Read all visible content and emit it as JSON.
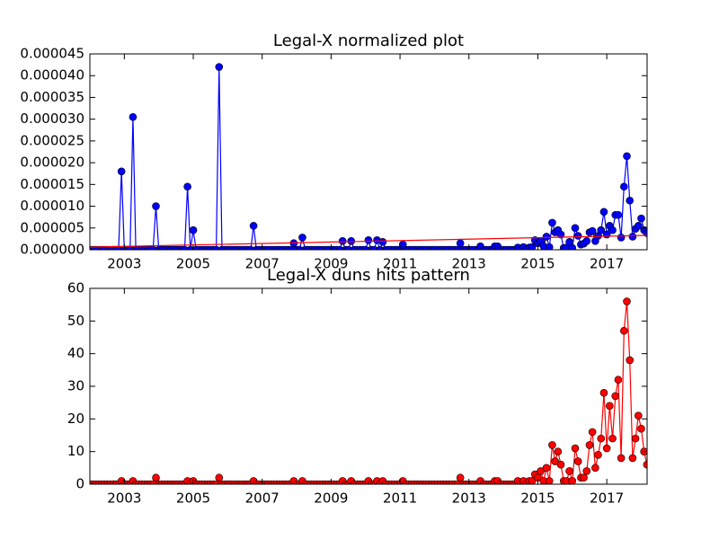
{
  "chart_data": [
    {
      "type": "line",
      "title": "Legal-X normalized plot",
      "x": [
        2002,
        2002.083,
        2002.167,
        2002.25,
        2002.333,
        2002.417,
        2002.5,
        2002.583,
        2002.667,
        2002.75,
        2002.833,
        2002.917,
        2003,
        2003.083,
        2003.167,
        2003.25,
        2003.333,
        2003.417,
        2003.5,
        2003.583,
        2003.667,
        2003.75,
        2003.833,
        2003.917,
        2004,
        2004.083,
        2004.167,
        2004.25,
        2004.333,
        2004.417,
        2004.5,
        2004.583,
        2004.667,
        2004.75,
        2004.833,
        2004.917,
        2005,
        2005.083,
        2005.167,
        2005.25,
        2005.333,
        2005.417,
        2005.5,
        2005.583,
        2005.667,
        2005.75,
        2005.833,
        2005.917,
        2006,
        2006.083,
        2006.167,
        2006.25,
        2006.333,
        2006.417,
        2006.5,
        2006.583,
        2006.667,
        2006.75,
        2006.833,
        2006.917,
        2007,
        2007.083,
        2007.167,
        2007.25,
        2007.333,
        2007.417,
        2007.5,
        2007.583,
        2007.667,
        2007.75,
        2007.833,
        2007.917,
        2008,
        2008.083,
        2008.167,
        2008.25,
        2008.333,
        2008.417,
        2008.5,
        2008.583,
        2008.667,
        2008.75,
        2008.833,
        2008.917,
        2009,
        2009.083,
        2009.167,
        2009.25,
        2009.333,
        2009.417,
        2009.5,
        2009.583,
        2009.667,
        2009.75,
        2009.833,
        2009.917,
        2010,
        2010.083,
        2010.167,
        2010.25,
        2010.333,
        2010.417,
        2010.5,
        2010.583,
        2010.667,
        2010.75,
        2010.833,
        2010.917,
        2011,
        2011.083,
        2011.167,
        2011.25,
        2011.333,
        2011.417,
        2011.5,
        2011.583,
        2011.667,
        2011.75,
        2011.833,
        2011.917,
        2012,
        2012.083,
        2012.167,
        2012.25,
        2012.333,
        2012.417,
        2012.5,
        2012.583,
        2012.667,
        2012.75,
        2012.833,
        2012.917,
        2013,
        2013.083,
        2013.167,
        2013.25,
        2013.333,
        2013.417,
        2013.5,
        2013.583,
        2013.667,
        2013.75,
        2013.833,
        2013.917,
        2014,
        2014.083,
        2014.167,
        2014.25,
        2014.333,
        2014.417,
        2014.5,
        2014.583,
        2014.667,
        2014.75,
        2014.833,
        2014.917,
        2015,
        2015.083,
        2015.167,
        2015.25,
        2015.333,
        2015.417,
        2015.5,
        2015.583,
        2015.667,
        2015.75,
        2015.833,
        2015.917,
        2016,
        2016.083,
        2016.167,
        2016.25,
        2016.333,
        2016.417,
        2016.5,
        2016.583,
        2016.667,
        2016.75,
        2016.833,
        2016.917,
        2017,
        2017.083,
        2017.167,
        2017.25,
        2017.333,
        2017.417,
        2017.5,
        2017.583,
        2017.667,
        2017.75,
        2017.833,
        2017.917,
        2018,
        2018.083,
        2018.167
      ],
      "series": [
        {
          "color": "#0000ff",
          "markers": true,
          "values": [
            0,
            0,
            0,
            0,
            0,
            0,
            0,
            0,
            0,
            0,
            0,
            1.8e-05,
            0,
            0,
            0,
            3.05e-05,
            0,
            0,
            0,
            0,
            0,
            0,
            0,
            1e-05,
            0,
            0,
            0,
            0,
            0,
            0,
            0,
            0,
            0,
            0,
            1.45e-05,
            0,
            4.5e-06,
            0,
            0,
            0,
            0,
            0,
            0,
            0,
            0,
            4.2e-05,
            0,
            0,
            0,
            0,
            0,
            0,
            0,
            0,
            0,
            0,
            0,
            5.5e-06,
            0,
            0,
            0,
            0,
            0,
            0,
            0,
            0,
            0,
            0,
            0,
            0,
            0,
            1.5e-06,
            0,
            0,
            2.8e-06,
            0,
            0,
            0,
            0,
            0,
            0,
            0,
            0,
            0,
            0,
            0,
            0,
            0,
            2e-06,
            0,
            0,
            2e-06,
            0,
            0,
            0,
            0,
            0,
            2.2e-06,
            0,
            0,
            2.2e-06,
            0,
            1.8e-06,
            0,
            0,
            0,
            0,
            0,
            0,
            1.2e-06,
            0,
            0,
            0,
            0,
            0,
            0,
            0,
            0,
            0,
            0,
            0,
            0,
            0,
            0,
            0,
            0,
            0,
            0,
            0,
            1.5e-06,
            0,
            0,
            0,
            0,
            0,
            0,
            8e-07,
            0,
            0,
            0,
            0,
            8e-07,
            8e-07,
            0,
            0,
            0,
            0,
            0,
            0,
            5e-07,
            0,
            6e-07,
            0,
            5e-07,
            6e-07,
            2.2e-06,
            1.5e-06,
            2e-06,
            8e-07,
            3e-06,
            6e-07,
            6.2e-06,
            4e-06,
            4.5e-06,
            3.5e-06,
            4e-07,
            5e-07,
            1.8e-06,
            4e-07,
            5e-06,
            3.2e-06,
            1.2e-06,
            1.4e-06,
            2e-06,
            4e-06,
            4.3e-06,
            2e-06,
            3.2e-06,
            4.5e-06,
            8.7e-06,
            3.5e-06,
            5.5e-06,
            4.5e-06,
            8e-06,
            8e-06,
            2.8e-06,
            1.45e-05,
            2.15e-05,
            1.13e-05,
            3e-06,
            4.8e-06,
            5.5e-06,
            7.2e-06,
            4.5e-06,
            3.8e-06
          ]
        },
        {
          "color": "#ff0000",
          "markers": false,
          "x": [
            2002,
            2018.17
          ],
          "values": [
            6e-07,
            3.3e-06
          ]
        }
      ],
      "xlim": [
        2002,
        2018.17
      ],
      "xticks": [
        2003,
        2005,
        2007,
        2009,
        2011,
        2013,
        2015,
        2017
      ],
      "ylim": [
        0,
        4.5e-05
      ],
      "yticks": [
        {
          "value": 0,
          "label": "0.000000"
        },
        {
          "value": 5e-06,
          "label": "0.000005"
        },
        {
          "value": 1e-05,
          "label": "0.000010"
        },
        {
          "value": 1.5e-05,
          "label": "0.000015"
        },
        {
          "value": 2e-05,
          "label": "0.000020"
        },
        {
          "value": 2.5e-05,
          "label": "0.000025"
        },
        {
          "value": 3e-05,
          "label": "0.000030"
        },
        {
          "value": 3.5e-05,
          "label": "0.000035"
        },
        {
          "value": 4e-05,
          "label": "0.000040"
        },
        {
          "value": 4.5e-05,
          "label": "0.000045"
        }
      ]
    },
    {
      "type": "line",
      "title": "Legal-X duns hits pattern",
      "x": [
        2002,
        2002.083,
        2002.167,
        2002.25,
        2002.333,
        2002.417,
        2002.5,
        2002.583,
        2002.667,
        2002.75,
        2002.833,
        2002.917,
        2003,
        2003.083,
        2003.167,
        2003.25,
        2003.333,
        2003.417,
        2003.5,
        2003.583,
        2003.667,
        2003.75,
        2003.833,
        2003.917,
        2004,
        2004.083,
        2004.167,
        2004.25,
        2004.333,
        2004.417,
        2004.5,
        2004.583,
        2004.667,
        2004.75,
        2004.833,
        2004.917,
        2005,
        2005.083,
        2005.167,
        2005.25,
        2005.333,
        2005.417,
        2005.5,
        2005.583,
        2005.667,
        2005.75,
        2005.833,
        2005.917,
        2006,
        2006.083,
        2006.167,
        2006.25,
        2006.333,
        2006.417,
        2006.5,
        2006.583,
        2006.667,
        2006.75,
        2006.833,
        2006.917,
        2007,
        2007.083,
        2007.167,
        2007.25,
        2007.333,
        2007.417,
        2007.5,
        2007.583,
        2007.667,
        2007.75,
        2007.833,
        2007.917,
        2008,
        2008.083,
        2008.167,
        2008.25,
        2008.333,
        2008.417,
        2008.5,
        2008.583,
        2008.667,
        2008.75,
        2008.833,
        2008.917,
        2009,
        2009.083,
        2009.167,
        2009.25,
        2009.333,
        2009.417,
        2009.5,
        2009.583,
        2009.667,
        2009.75,
        2009.833,
        2009.917,
        2010,
        2010.083,
        2010.167,
        2010.25,
        2010.333,
        2010.417,
        2010.5,
        2010.583,
        2010.667,
        2010.75,
        2010.833,
        2010.917,
        2011,
        2011.083,
        2011.167,
        2011.25,
        2011.333,
        2011.417,
        2011.5,
        2011.583,
        2011.667,
        2011.75,
        2011.833,
        2011.917,
        2012,
        2012.083,
        2012.167,
        2012.25,
        2012.333,
        2012.417,
        2012.5,
        2012.583,
        2012.667,
        2012.75,
        2012.833,
        2012.917,
        2013,
        2013.083,
        2013.167,
        2013.25,
        2013.333,
        2013.417,
        2013.5,
        2013.583,
        2013.667,
        2013.75,
        2013.833,
        2013.917,
        2014,
        2014.083,
        2014.167,
        2014.25,
        2014.333,
        2014.417,
        2014.5,
        2014.583,
        2014.667,
        2014.75,
        2014.833,
        2014.917,
        2015,
        2015.083,
        2015.167,
        2015.25,
        2015.333,
        2015.417,
        2015.5,
        2015.583,
        2015.667,
        2015.75,
        2015.833,
        2015.917,
        2016,
        2016.083,
        2016.167,
        2016.25,
        2016.333,
        2016.417,
        2016.5,
        2016.583,
        2016.667,
        2016.75,
        2016.833,
        2016.917,
        2017,
        2017.083,
        2017.167,
        2017.25,
        2017.333,
        2017.417,
        2017.5,
        2017.583,
        2017.667,
        2017.75,
        2017.833,
        2017.917,
        2018,
        2018.083,
        2018.167
      ],
      "series": [
        {
          "color": "#ff0000",
          "markers": true,
          "values": [
            0,
            0,
            0,
            0,
            0,
            0,
            0,
            0,
            0,
            0,
            0,
            1,
            0,
            0,
            0,
            1,
            0,
            0,
            0,
            0,
            0,
            0,
            0,
            2,
            0,
            0,
            0,
            0,
            0,
            0,
            0,
            0,
            0,
            0,
            1,
            0,
            1,
            0,
            0,
            0,
            0,
            0,
            0,
            0,
            0,
            2,
            0,
            0,
            0,
            0,
            0,
            0,
            0,
            0,
            0,
            0,
            0,
            1,
            0,
            0,
            0,
            0,
            0,
            0,
            0,
            0,
            0,
            0,
            0,
            0,
            0,
            1,
            0,
            0,
            1,
            0,
            0,
            0,
            0,
            0,
            0,
            0,
            0,
            0,
            0,
            0,
            0,
            0,
            1,
            0,
            0,
            1,
            0,
            0,
            0,
            0,
            0,
            1,
            0,
            0,
            1,
            0,
            1,
            0,
            0,
            0,
            0,
            0,
            0,
            1,
            0,
            0,
            0,
            0,
            0,
            0,
            0,
            0,
            0,
            0,
            0,
            0,
            0,
            0,
            0,
            0,
            0,
            0,
            0,
            2,
            0,
            0,
            0,
            0,
            0,
            0,
            1,
            0,
            0,
            0,
            0,
            1,
            1,
            0,
            0,
            0,
            0,
            0,
            0,
            1,
            0,
            1,
            0,
            1,
            1,
            3,
            2,
            4,
            1,
            5,
            1,
            12,
            7,
            10,
            6,
            1,
            1,
            4,
            1,
            11,
            7,
            2,
            2,
            4,
            12,
            16,
            5,
            9,
            14,
            28,
            11,
            24,
            14,
            27,
            32,
            8,
            47,
            56,
            38,
            8,
            14,
            21,
            17,
            10,
            6
          ]
        }
      ],
      "xlim": [
        2002,
        2018.17
      ],
      "xticks": [
        2003,
        2005,
        2007,
        2009,
        2011,
        2013,
        2015,
        2017
      ],
      "ylim": [
        0,
        60
      ],
      "yticks": [
        0,
        10,
        20,
        30,
        40,
        50,
        60
      ]
    }
  ]
}
